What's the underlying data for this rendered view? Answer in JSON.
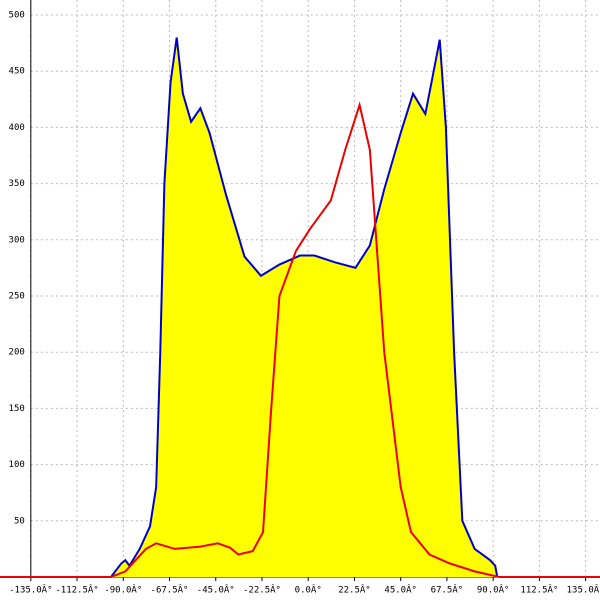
{
  "chart_data": {
    "type": "area-line",
    "xlim": [
      -150,
      142
    ],
    "ylim": [
      0,
      500
    ],
    "xticks": [
      {
        "value": -135,
        "label": "-135.0Â°"
      },
      {
        "value": -112.5,
        "label": "-112.5Â°"
      },
      {
        "value": -90,
        "label": "-90.0Â°"
      },
      {
        "value": -67.5,
        "label": "-67.5Â°"
      },
      {
        "value": -45,
        "label": "-45.0Â°"
      },
      {
        "value": -22.5,
        "label": "-22.5Â°"
      },
      {
        "value": 0,
        "label": "0.0Â°"
      },
      {
        "value": 22.5,
        "label": "22.5Â°"
      },
      {
        "value": 45,
        "label": "45.0Â°"
      },
      {
        "value": 67.5,
        "label": "67.5Â°"
      },
      {
        "value": 90,
        "label": "90.0Â°"
      },
      {
        "value": 112.5,
        "label": "112.5Â°"
      },
      {
        "value": 135,
        "label": "135.0Â°"
      }
    ],
    "yticks": [
      50,
      100,
      150,
      200,
      250,
      300,
      350,
      400,
      450,
      500
    ],
    "grid": true,
    "series": [
      {
        "color": "#0000cc",
        "fill": "#ffff00",
        "x": [
          -96,
          -91,
          -89,
          -87,
          -82,
          -77,
          -74,
          -72,
          -70,
          -67,
          -64,
          -61,
          -57,
          -52.5,
          -48,
          -40,
          -31,
          -23,
          -14,
          -4,
          3,
          13,
          23,
          30,
          37,
          45,
          51,
          57,
          60,
          64,
          67,
          71,
          75,
          81,
          88.5,
          91,
          92
        ],
        "values": [
          0,
          12,
          15,
          10,
          25,
          45,
          80,
          200,
          350,
          440,
          480,
          430,
          405,
          417,
          395,
          340,
          285,
          268,
          278,
          286,
          286,
          280,
          275,
          295,
          345,
          395,
          430,
          412,
          440,
          478,
          400,
          200,
          50,
          25,
          15,
          10,
          0
        ]
      },
      {
        "color": "#ee0000",
        "x": [
          -150,
          -96,
          -89,
          -84,
          -79,
          -74,
          -65,
          -52.5,
          -44,
          -38,
          -34,
          -27,
          -22,
          -18,
          -14,
          -6,
          1,
          11,
          18,
          25,
          30,
          37,
          45,
          50,
          59,
          69,
          81,
          93,
          142
        ],
        "values": [
          0,
          0,
          5,
          15,
          25,
          30,
          25,
          27,
          30,
          26,
          20,
          23,
          40,
          150,
          250,
          290,
          310,
          335,
          380,
          420,
          380,
          200,
          80,
          40,
          20,
          12,
          5,
          0,
          0
        ]
      }
    ]
  }
}
